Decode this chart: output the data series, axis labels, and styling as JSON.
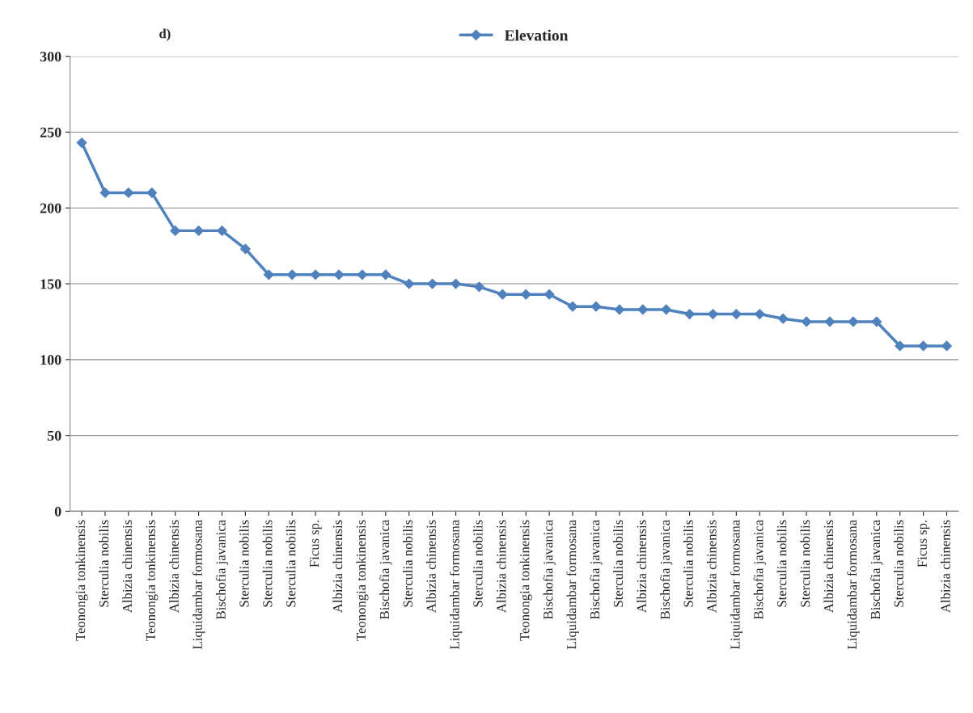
{
  "chart_data": {
    "type": "line",
    "title": "d)",
    "categories": [
      "Teonongia tonkinensis",
      "Sterculia nobilis",
      "Albizia chinensis",
      "Teonongia tonkinensis",
      "Albizia chinensis",
      "Liquidambar formosana",
      "Bischofia javanica",
      "Sterculia nobilis",
      "Sterculia nobilis",
      "Sterculia nobilis",
      "Ficus sp.",
      "Albizia chinensis",
      "Teonongia tonkinensis",
      "Bischofia javanica",
      "Sterculia nobilis",
      "Albizia chinensis",
      "Liquidambar formosana",
      "Sterculia nobilis",
      "Albizia chinensis",
      "Teonongia tonkinensis",
      "Bischofia javanica",
      "Liquidambar formosana",
      "Bischofia javanica",
      "Sterculia nobilis",
      "Albizia chinensis",
      "Bischofia javanica",
      "Sterculia nobilis",
      "Albizia chinensis",
      "Liquidambar formosana",
      "Bischofia javanica",
      "Sterculia nobilis",
      "Sterculia nobilis",
      "Albizia chinensis",
      "Liquidambar formosana",
      "Bischofia javanica",
      "Sterculia nobilis",
      "Ficus sp.",
      "Albizia chinensis"
    ],
    "series": [
      {
        "name": "Elevation",
        "color": "#4f81bd",
        "values": [
          243,
          210,
          210,
          210,
          185,
          185,
          185,
          173,
          156,
          156,
          156,
          156,
          156,
          156,
          150,
          150,
          150,
          148,
          143,
          143,
          143,
          135,
          135,
          133,
          133,
          133,
          130,
          130,
          130,
          130,
          127,
          125,
          125,
          125,
          125,
          109,
          109,
          109
        ]
      }
    ],
    "ylim": [
      0,
      300
    ],
    "yticks": [
      0,
      50,
      100,
      150,
      200,
      250,
      300
    ],
    "grid": "y",
    "legend": "top",
    "marker": "diamond",
    "line_style": "solid"
  }
}
